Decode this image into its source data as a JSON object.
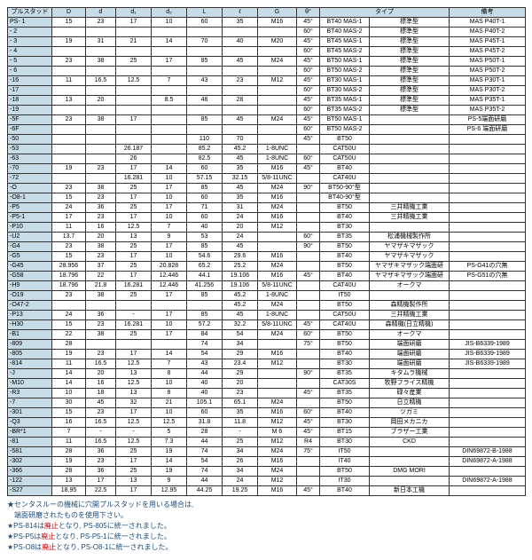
{
  "hdr": [
    "プルスタッド",
    "D",
    "d",
    "d₁",
    "d₂",
    "L",
    "ℓ",
    "G",
    "θ°",
    "タイプ",
    "",
    "備考"
  ],
  "rows": [
    [
      "PS- 1",
      "15",
      "23",
      "17",
      "10",
      "60",
      "35",
      "M16",
      "45°",
      "BT40 MAS-1",
      "標準型",
      "MAS P40T-1"
    ],
    [
      "  - 2",
      "",
      "",
      "",
      "",
      "",
      "",
      "",
      "60°",
      "BT40 MAS-2",
      "標準型",
      "MAS P40T-2"
    ],
    [
      "  - 3",
      "19",
      "31",
      "21",
      "14",
      "70",
      "40",
      "M20",
      "45°",
      "BT45 MAS-1",
      "標準型",
      "MAS P45T-1"
    ],
    [
      "  - 4",
      "",
      "",
      "",
      "",
      "",
      "",
      "",
      "60°",
      "BT45 MAS-2",
      "標準型",
      "MAS P45T-2"
    ],
    [
      "  - 5",
      "23",
      "38",
      "25",
      "17",
      "85",
      "45",
      "M24",
      "45°",
      "BT50 MAS-1",
      "標準型",
      "MAS P50T-1"
    ],
    [
      "  - 6",
      "",
      "",
      "",
      "",
      "",
      "",
      "",
      "60°",
      "BT50 MAS-2",
      "標準型",
      "MAS P50T-2"
    ],
    [
      " -16",
      "11",
      "16.5",
      "12.5",
      "7",
      "43",
      "23",
      "M12",
      "45°",
      "BT30 MAS-1",
      "標準型",
      "MAS P30T-1"
    ],
    [
      " -17",
      "",
      "",
      "",
      "",
      "",
      "",
      "",
      "60°",
      "BT30 MAS-2",
      "標準型",
      "MAS P30T-2"
    ],
    [
      " -18",
      "13",
      "20",
      "",
      "8.5",
      "48",
      "28",
      "",
      "45°",
      "BT35 MAS-1",
      "標準型",
      "MAS P35T-1"
    ],
    [
      " -19",
      "",
      "",
      "",
      "",
      "",
      "",
      "",
      "60°",
      "BT35 MAS-2",
      "標準型",
      "MAS P35T-2"
    ],
    [
      " -5F",
      "23",
      "38",
      "17",
      "",
      "85",
      "45",
      "M24",
      "45°",
      "BT50 MAS-1",
      "",
      "PS-5端面研磨"
    ],
    [
      " -6F",
      "",
      "",
      "",
      "",
      "",
      "",
      "",
      "60°",
      "BT50 MAS-2",
      "",
      "PS-6 端面研磨"
    ],
    [
      " -50",
      "",
      "",
      "",
      "",
      "110",
      "70",
      "",
      "45°",
      "BT50",
      "",
      ""
    ],
    [
      " -53",
      "",
      "",
      "26.187",
      "",
      "85.2",
      "45.2",
      "1-8UNC",
      "",
      "CAT50U",
      "",
      ""
    ],
    [
      " -63",
      "",
      "",
      "26",
      "",
      "82.5",
      "45",
      "1-8UNC",
      "60°",
      "CAT50U",
      "",
      ""
    ],
    [
      " -70",
      "19",
      "23",
      "17",
      "14",
      "60",
      "35",
      "M16",
      "45°",
      "BT40",
      "",
      ""
    ],
    [
      " -72",
      "",
      "",
      "16.281",
      "10",
      "57.15",
      "32.15",
      "5/8-11UNC",
      "",
      "CAT40U",
      "",
      ""
    ],
    [
      " -O",
      "23",
      "38",
      "25",
      "17",
      "85",
      "45",
      "M24",
      "90°",
      "BT50-90°型",
      "",
      ""
    ],
    [
      " -O8-1",
      "15",
      "23",
      "17",
      "10",
      "60",
      "35",
      "M16",
      "",
      "BT40-90°型",
      "",
      ""
    ],
    [
      " -P5",
      "24",
      "36",
      "25",
      "17",
      "71",
      "31",
      "M24",
      "",
      "BT50",
      "三井精機工業",
      ""
    ],
    [
      " -P5-1",
      "17",
      "23",
      "17",
      "10",
      "60",
      "24",
      "M16",
      "",
      "BT40",
      "三井精機工業",
      ""
    ],
    [
      " -P10",
      "11",
      "16",
      "12.5",
      "7",
      "40",
      "20",
      "M12",
      "",
      "BT30",
      "",
      ""
    ],
    [
      " -U2",
      "13.7",
      "20",
      "13",
      "9",
      "53",
      "24",
      "",
      "60°",
      "BT35",
      "松浦機械製作所",
      ""
    ],
    [
      " -G4",
      "23",
      "38",
      "25",
      "17",
      "85",
      "45",
      "",
      "90°",
      "BT50",
      "ヤマザキマザック",
      ""
    ],
    [
      " -G5",
      "15",
      "23",
      "17",
      "10",
      "54.6",
      "29.6",
      "M16",
      "",
      "BT40",
      "ヤマザキマザック",
      ""
    ],
    [
      " -G45",
      "28.956",
      "37",
      "25",
      "20.828",
      "65.2",
      "25.2",
      "M24",
      "",
      "BT50",
      "ヤマザキマザック端面研",
      "PS-G41の穴無"
    ],
    [
      " -G58",
      "18.796",
      "22",
      "17",
      "12.446",
      "44.1",
      "19.106",
      "M16",
      "45°",
      "BT40",
      "ヤマザキマザック端面研",
      "PS-G51の穴無"
    ],
    [
      " -H9",
      "18.796",
      "21.8",
      "16.281",
      "12.446",
      "41.256",
      "19.106",
      "5/8-11UNC",
      "",
      "CAT40U",
      "オークマ",
      ""
    ],
    [
      " -O19",
      "23",
      "38",
      "25",
      "17",
      "85",
      "45.2",
      "1-8UNC",
      "",
      "IT50",
      "",
      ""
    ],
    [
      " -O47-2",
      "",
      "",
      "",
      "",
      "",
      "45.2",
      "M24",
      "",
      "BT50",
      "森精機製作所",
      ""
    ],
    [
      " -P13",
      "24",
      "36",
      "-",
      "17",
      "85",
      "45",
      "1-8UNC",
      "",
      "CAT50U",
      "三井精機工業",
      ""
    ],
    [
      " -H30",
      "15",
      "23",
      "16.281",
      "10",
      "57.2",
      "32.2",
      "5/8-11UNC",
      "45°",
      "CAT40U",
      "森精機(日立精機)",
      ""
    ],
    [
      " -B1",
      "22",
      "38",
      "25",
      "17",
      "84",
      "54",
      "M24",
      "60°",
      "BT50",
      "オークマ",
      ""
    ],
    [
      " -809",
      "28",
      "",
      "",
      "",
      "74",
      "34",
      "",
      "75°",
      "BT50",
      "端面研磨",
      "JIS-B6339-1989"
    ],
    [
      " -805",
      "19",
      "23",
      "17",
      "14",
      "54",
      "29",
      "M16",
      "",
      "BT40",
      "端面研磨",
      "JIS-B6339-1989"
    ],
    [
      " -814",
      "11",
      "16.5",
      "12.5",
      "7",
      "43",
      "23.4",
      "M12",
      "",
      "BT30",
      "端面研磨",
      "JIS-B6339-1989"
    ],
    [
      " -J",
      "14",
      "20",
      "13",
      "8",
      "44",
      "29",
      "",
      "90°",
      "BT35",
      "キタムラ機械",
      ""
    ],
    [
      " -M10",
      "14",
      "16",
      "12.5",
      "10",
      "40",
      "20",
      "",
      "",
      "CAT30S",
      "牧野フライス精機",
      ""
    ],
    [
      " -R3",
      "10",
      "18",
      "13",
      "8",
      "40",
      "23",
      "",
      "45°",
      "BT35",
      "碌々産業",
      ""
    ],
    [
      " -7",
      "30",
      "45",
      "32",
      "21",
      "105.1",
      "65.1",
      "M24",
      "",
      "BT50",
      "日立精機",
      ""
    ],
    [
      " -301",
      "15",
      "23",
      "17",
      "10",
      "60",
      "35",
      "M16",
      "60°",
      "BT40",
      "ツガミ",
      ""
    ],
    [
      " -Q3",
      "16",
      "16.5",
      "12.5",
      "12.5",
      "31.8",
      "11.8",
      "M12",
      "45°",
      "BT30",
      "岡田メカニカ",
      ""
    ],
    [
      " -BR*1",
      "7",
      "-",
      "-",
      "5",
      "28",
      "-",
      "M 6",
      "45°",
      "BT15",
      "ブラザー工業",
      ""
    ],
    [
      " -81",
      "11",
      "16.5",
      "12.5",
      "7.3",
      "44",
      "25",
      "M12",
      "R4",
      "BT30",
      "CKD",
      ""
    ],
    [
      " -581",
      "28",
      "36",
      "25",
      "19",
      "74",
      "34",
      "M24",
      "75°",
      "IT50",
      "",
      "DIN69872-B-1988"
    ],
    [
      " -302",
      "19",
      "23",
      "17",
      "14",
      "54",
      "26",
      "M16",
      "",
      "IT40",
      "",
      "DIN69872-A-1988"
    ],
    [
      " -366",
      "28",
      "36",
      "25",
      "19",
      "74",
      "34",
      "M24",
      "",
      "BT50",
      "DMG MORI",
      ""
    ],
    [
      " -122",
      "13",
      "17",
      "13",
      "9",
      "44",
      "24",
      "M12",
      "",
      "IT30",
      "",
      "DIN69872-A-1988"
    ],
    [
      " -S27",
      "18.95",
      "22.5",
      "17",
      "12.95",
      "44.25",
      "19.25",
      "M16",
      "45°",
      "BT40",
      "新日本工機",
      ""
    ]
  ],
  "notes": [
    "★センタスルーの機械に穴開プルスタッドを用いる場合は,",
    "　端面研磨されたものを使用下さい。",
    "★PS-814は廃止となり, PS-805に統一されました。",
    "★PS-P5は廃止となり, PS-P5-1に統一されました。",
    "★PS-O8は廃止となり, PS-O8-1に統一されました。"
  ]
}
